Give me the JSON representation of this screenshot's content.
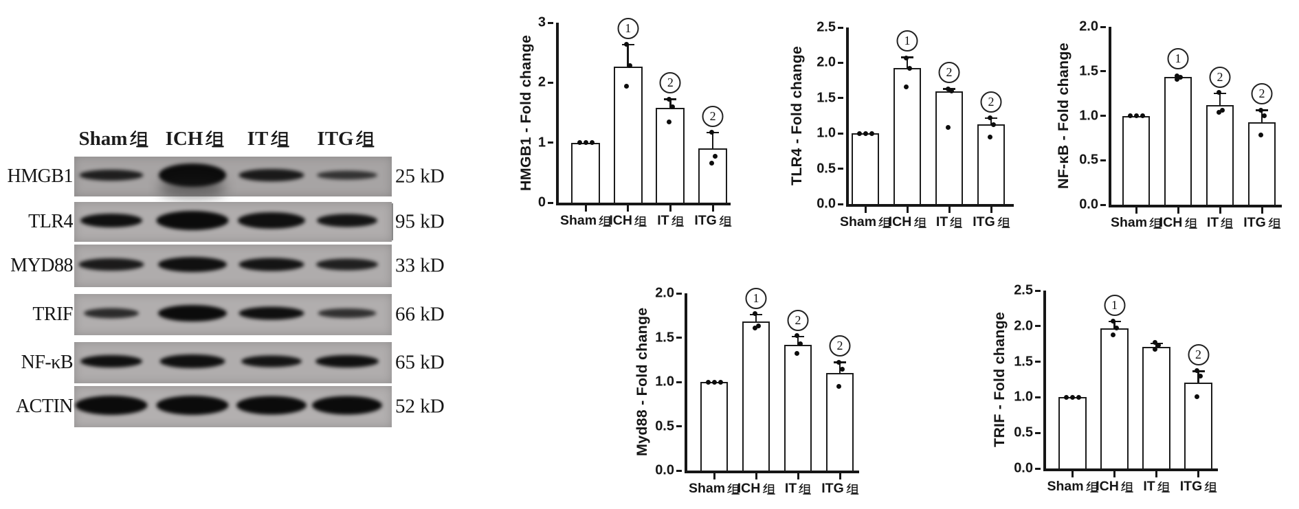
{
  "colors": {
    "background": "#ffffff",
    "axis_and_text": "#161616",
    "bar_fill": "#ffffff",
    "blot_strip_gray": "#aeabab",
    "band_black": "#0b0b0b"
  },
  "blot": {
    "lane_labels": [
      "Sham组",
      "ICH组",
      "IT组",
      "ITG组"
    ],
    "rows": [
      {
        "protein": "HMGB1",
        "kd": "25 kD"
      },
      {
        "protein": "TLR4",
        "kd": "95 kD"
      },
      {
        "protein": "MYD88",
        "kd": "33 kD"
      },
      {
        "protein": "TRIF",
        "kd": "66 kD"
      },
      {
        "protein": "NF-κB",
        "kd": "65 kD"
      },
      {
        "protein": "ACTIN",
        "kd": "52 kD"
      }
    ],
    "band_relative_intensity": [
      [
        0.8,
        1.0,
        0.85,
        0.6
      ],
      [
        0.95,
        1.0,
        0.95,
        0.9
      ],
      [
        0.85,
        0.95,
        0.9,
        0.8
      ],
      [
        0.7,
        1.0,
        0.95,
        0.65
      ],
      [
        0.95,
        0.95,
        0.9,
        0.95
      ],
      [
        1.0,
        1.0,
        1.0,
        1.0
      ]
    ]
  },
  "chart_data": [
    {
      "type": "bar",
      "title": "HMGB1 - Fold change",
      "ylabel": "HMGB1 - Fold change",
      "categories": [
        "Sham组",
        "ICH组",
        "IT组",
        "ITG组"
      ],
      "values": [
        1.0,
        2.27,
        1.58,
        0.9
      ],
      "errors": [
        0.02,
        0.38,
        0.16,
        0.28
      ],
      "points": [
        [
          1.0,
          1.0,
          1.0
        ],
        [
          2.64,
          2.28,
          1.94
        ],
        [
          1.72,
          1.6,
          1.34
        ],
        [
          1.17,
          0.77,
          0.66
        ]
      ],
      "annotations": [
        "",
        "1",
        "2",
        "2"
      ],
      "ylim": [
        0,
        3
      ],
      "yticks": [
        "0",
        "1",
        "2",
        "3"
      ],
      "grid": false,
      "legend": "none"
    },
    {
      "type": "bar",
      "title": "TLR4 - Fold change",
      "ylabel": "TLR4 - Fold change",
      "categories": [
        "Sham组",
        "ICH组",
        "IT组",
        "ITG组"
      ],
      "values": [
        1.0,
        1.93,
        1.6,
        1.13
      ],
      "errors": [
        0.02,
        0.16,
        0.04,
        0.1
      ],
      "points": [
        [
          1.0,
          1.0,
          1.0
        ],
        [
          2.07,
          1.92,
          1.66
        ],
        [
          1.63,
          1.6,
          1.08
        ],
        [
          1.22,
          1.12,
          0.95
        ]
      ],
      "annotations": [
        "",
        "1",
        "2",
        "2"
      ],
      "ylim": [
        0,
        2.5
      ],
      "yticks": [
        "0.0",
        "0.5",
        "1.0",
        "1.5",
        "2.0",
        "2.5"
      ],
      "grid": false,
      "legend": "none"
    },
    {
      "type": "bar",
      "title": "NF-κB - Fold change",
      "ylabel": "NF-κB - Fold change",
      "categories": [
        "Sham组",
        "ICH组",
        "IT组",
        "ITG组"
      ],
      "values": [
        1.0,
        1.44,
        1.12,
        0.93
      ],
      "errors": [
        0.02,
        0.03,
        0.14,
        0.14
      ],
      "points": [
        [
          1.0,
          1.0,
          1.0
        ],
        [
          1.45,
          1.43,
          1.41
        ],
        [
          1.26,
          1.06,
          1.04
        ],
        [
          1.06,
          1.0,
          0.78
        ]
      ],
      "annotations": [
        "",
        "1",
        "2",
        "2"
      ],
      "ylim": [
        0,
        2.0
      ],
      "yticks": [
        "0.0",
        "0.5",
        "1.0",
        "1.5",
        "2.0"
      ],
      "grid": false,
      "legend": "none"
    },
    {
      "type": "bar",
      "title": "Myd88 - Fold change",
      "ylabel": "Myd88 - Fold change",
      "categories": [
        "Sham组",
        "ICH组",
        "IT组",
        "ITG组"
      ],
      "values": [
        1.0,
        1.68,
        1.42,
        1.1
      ],
      "errors": [
        0.02,
        0.09,
        0.1,
        0.13
      ],
      "points": [
        [
          1.0,
          1.0,
          1.0
        ],
        [
          1.77,
          1.63,
          1.61
        ],
        [
          1.52,
          1.43,
          1.32
        ],
        [
          1.22,
          1.14,
          0.95
        ]
      ],
      "annotations": [
        "",
        "1",
        "2",
        "2"
      ],
      "ylim": [
        0,
        2.0
      ],
      "yticks": [
        "0.0",
        "0.5",
        "1.0",
        "1.5",
        "2.0"
      ],
      "grid": false,
      "legend": "none"
    },
    {
      "type": "bar",
      "title": "TRIF - Fold change",
      "ylabel": "TRIF - Fold change",
      "categories": [
        "Sham组",
        "ICH组",
        "IT组",
        "ITG组"
      ],
      "values": [
        1.0,
        1.97,
        1.71,
        1.21
      ],
      "errors": [
        0.02,
        0.11,
        0.06,
        0.17
      ],
      "points": [
        [
          1.0,
          1.0,
          1.0
        ],
        [
          2.07,
          1.97,
          1.88
        ],
        [
          1.77,
          1.73,
          1.67
        ],
        [
          1.38,
          1.3,
          1.01
        ]
      ],
      "annotations": [
        "",
        "1",
        "",
        "2"
      ],
      "ylim": [
        0,
        2.5
      ],
      "yticks": [
        "0.0",
        "0.5",
        "1.0",
        "1.5",
        "2.0",
        "2.5"
      ],
      "grid": false,
      "legend": "none"
    }
  ]
}
